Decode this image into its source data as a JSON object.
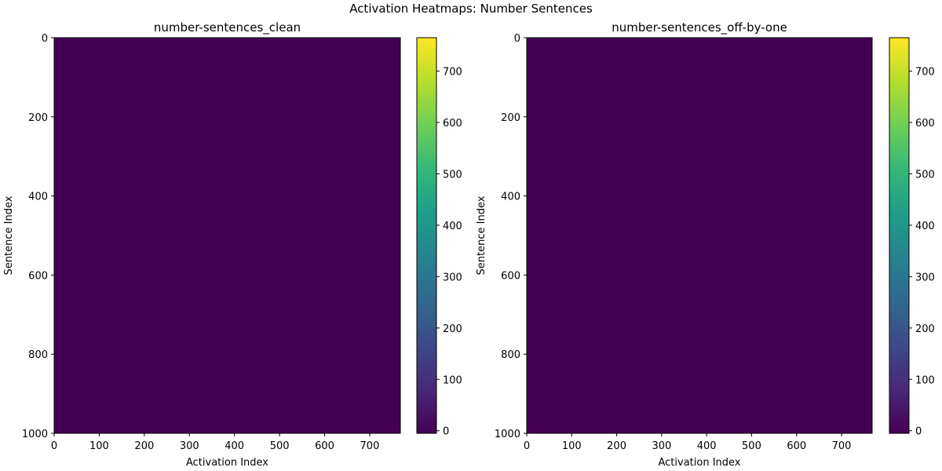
{
  "figure": {
    "suptitle": "Activation Heatmaps: Number Sentences"
  },
  "chart_data": [
    {
      "type": "heatmap",
      "title": "number-sentences_clean",
      "xlabel": "Activation Index",
      "ylabel": "Sentence Index",
      "xlim": [
        0,
        768
      ],
      "ylim": [
        1000,
        0
      ],
      "x_ticks": [
        0,
        100,
        200,
        300,
        400,
        500,
        600,
        700
      ],
      "y_ticks": [
        0,
        200,
        400,
        600,
        800,
        1000
      ],
      "colormap": "viridis",
      "fill_value": 0,
      "fill_color": "#440154",
      "colorbar": {
        "vmin": -5,
        "vmax": 765,
        "ticks": [
          0,
          100,
          200,
          300,
          400,
          500,
          600,
          700
        ]
      },
      "grid": false
    },
    {
      "type": "heatmap",
      "title": "number-sentences_off-by-one",
      "xlabel": "Activation Index",
      "ylabel": "Sentence Index",
      "xlim": [
        0,
        768
      ],
      "ylim": [
        1000,
        0
      ],
      "x_ticks": [
        0,
        100,
        200,
        300,
        400,
        500,
        600,
        700
      ],
      "y_ticks": [
        0,
        200,
        400,
        600,
        800,
        1000
      ],
      "colormap": "viridis",
      "fill_value": 0,
      "fill_color": "#440154",
      "colorbar": {
        "vmin": -5,
        "vmax": 765,
        "ticks": [
          0,
          100,
          200,
          300,
          400,
          500,
          600,
          700
        ]
      },
      "grid": false
    }
  ]
}
